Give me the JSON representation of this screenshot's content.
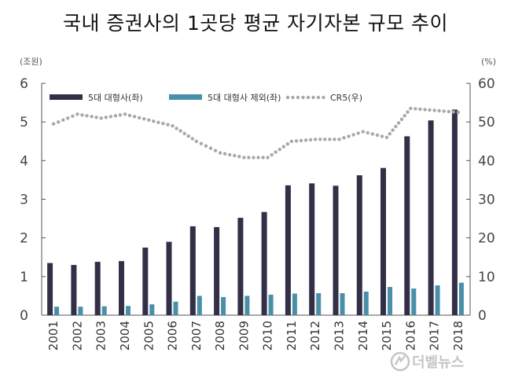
{
  "title": "국내 증권사의 1곳당 평균 자기자본 규모 추이",
  "watermark": "더벨뉴스",
  "chart_data": {
    "type": "bar",
    "left_unit": "(조원)",
    "right_unit": "(%)",
    "categories": [
      "2001",
      "2002",
      "2003",
      "2004",
      "2005",
      "2006",
      "2007",
      "2008",
      "2009",
      "2010",
      "2011",
      "2012",
      "2013",
      "2014",
      "2015",
      "2016",
      "2017",
      "2018"
    ],
    "ylim_left": [
      0,
      6
    ],
    "yticks_left": [
      "0",
      "1",
      "2",
      "3",
      "4",
      "5",
      "6"
    ],
    "ylim_right": [
      0,
      60
    ],
    "yticks_right": [
      "0",
      "10",
      "20",
      "30",
      "40",
      "50",
      "60"
    ],
    "series": [
      {
        "name": "5대 대형사(좌)",
        "kind": "bar",
        "axis": "left",
        "color": "#332f46",
        "values": [
          1.35,
          1.3,
          1.38,
          1.4,
          1.75,
          1.9,
          2.3,
          2.28,
          2.52,
          2.67,
          3.36,
          3.41,
          3.35,
          3.62,
          3.81,
          4.63,
          5.04,
          5.32
        ]
      },
      {
        "name": "5대 대형사 제외(좌)",
        "kind": "bar",
        "axis": "left",
        "color": "#4a8fa8",
        "values": [
          0.22,
          0.22,
          0.23,
          0.24,
          0.28,
          0.35,
          0.5,
          0.47,
          0.5,
          0.53,
          0.56,
          0.57,
          0.57,
          0.61,
          0.73,
          0.69,
          0.77,
          0.84
        ]
      },
      {
        "name": "CR5(우)",
        "kind": "dotted-line",
        "axis": "right",
        "color": "#a8a8a8",
        "values": [
          49.5,
          52.0,
          51.0,
          52.0,
          50.5,
          49.0,
          45.0,
          42.0,
          40.8,
          40.8,
          45.0,
          45.5,
          45.5,
          47.5,
          46.0,
          53.5,
          53.0,
          52.5
        ]
      }
    ],
    "legend_position": "top-left",
    "grid": false
  }
}
